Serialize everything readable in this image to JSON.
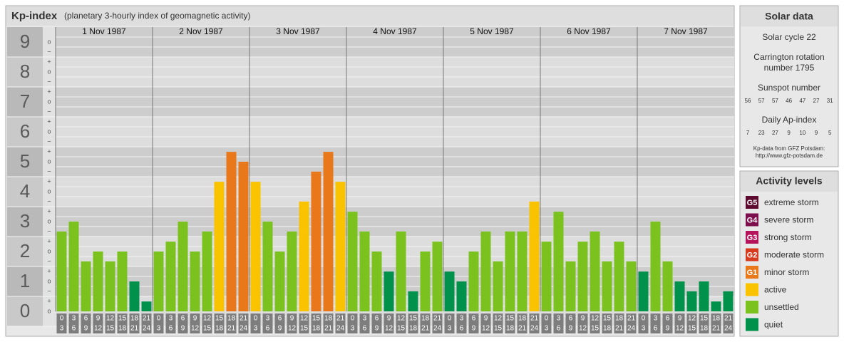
{
  "title": "Kp-index",
  "subtitle": "(planetary 3-hourly index of geomagnetic activity)",
  "chart_data": {
    "type": "bar",
    "ylim": [
      -0.5,
      9.5
    ],
    "yticks": [
      0,
      1,
      2,
      3,
      4,
      5,
      6,
      7,
      8,
      9
    ],
    "sublevel_labels": [
      "−",
      "o",
      "+"
    ],
    "time_labels": [
      {
        "from": "0",
        "to": "3"
      },
      {
        "from": "3",
        "to": "6"
      },
      {
        "from": "6",
        "to": "9"
      },
      {
        "from": "9",
        "to": "12"
      },
      {
        "from": "12",
        "to": "15"
      },
      {
        "from": "15",
        "to": "18"
      },
      {
        "from": "18",
        "to": "21"
      },
      {
        "from": "21",
        "to": "24"
      }
    ],
    "series": [
      {
        "name": "1 Nov 1987",
        "values": [
          2.67,
          3.0,
          1.67,
          2.0,
          1.67,
          2.0,
          1.0,
          0.33
        ],
        "colors": [
          "#7cc21f",
          "#7cc21f",
          "#7cc21f",
          "#7cc21f",
          "#7cc21f",
          "#7cc21f",
          "#00914a",
          "#00914a"
        ]
      },
      {
        "name": "2 Nov 1987",
        "values": [
          2.0,
          2.33,
          3.0,
          2.0,
          2.67,
          4.33,
          5.33,
          5.0
        ],
        "colors": [
          "#7cc21f",
          "#7cc21f",
          "#7cc21f",
          "#7cc21f",
          "#7cc21f",
          "#f9c300",
          "#e8781a",
          "#e8781a"
        ]
      },
      {
        "name": "3 Nov 1987",
        "values": [
          4.33,
          3.0,
          2.0,
          2.67,
          3.67,
          4.67,
          5.33,
          4.33
        ],
        "colors": [
          "#f9c300",
          "#7cc21f",
          "#7cc21f",
          "#7cc21f",
          "#f9c300",
          "#e8781a",
          "#e8781a",
          "#f9c300"
        ]
      },
      {
        "name": "4 Nov 1987",
        "values": [
          3.33,
          2.67,
          2.0,
          1.33,
          2.67,
          0.67,
          2.0,
          2.33
        ],
        "colors": [
          "#7cc21f",
          "#7cc21f",
          "#7cc21f",
          "#00914a",
          "#7cc21f",
          "#00914a",
          "#7cc21f",
          "#7cc21f"
        ]
      },
      {
        "name": "5 Nov 1987",
        "values": [
          1.33,
          1.0,
          2.0,
          2.67,
          1.67,
          2.67,
          2.67,
          3.67
        ],
        "colors": [
          "#00914a",
          "#00914a",
          "#7cc21f",
          "#7cc21f",
          "#7cc21f",
          "#7cc21f",
          "#7cc21f",
          "#f9c300"
        ]
      },
      {
        "name": "6 Nov 1987",
        "values": [
          2.33,
          3.33,
          1.67,
          2.33,
          2.67,
          1.67,
          2.33,
          1.67
        ],
        "colors": [
          "#7cc21f",
          "#7cc21f",
          "#7cc21f",
          "#7cc21f",
          "#7cc21f",
          "#7cc21f",
          "#7cc21f",
          "#7cc21f"
        ]
      },
      {
        "name": "7 Nov 1987",
        "values": [
          1.33,
          3.0,
          1.67,
          1.0,
          0.67,
          1.0,
          0.33,
          0.67
        ],
        "colors": [
          "#00914a",
          "#7cc21f",
          "#7cc21f",
          "#00914a",
          "#00914a",
          "#00914a",
          "#00914a",
          "#00914a"
        ]
      }
    ]
  },
  "solar_data": {
    "title": "Solar data",
    "cycle": "Solar cycle 22",
    "carrington": [
      "Carrington rotation",
      "number 1795"
    ],
    "sunspot_title": "Sunspot number",
    "sunspot": [
      56,
      57,
      57,
      46,
      47,
      27,
      31
    ],
    "ap_title": "Daily Ap-index",
    "ap": [
      7,
      23,
      27,
      9,
      10,
      9,
      5
    ],
    "source": [
      "Kp-data from GFZ Potsdam:",
      "http://www.gfz-potsdam.de"
    ]
  },
  "activity_levels": {
    "title": "Activity levels",
    "items": [
      {
        "badge": "G5",
        "label": "extreme storm",
        "color": "#5c0a2e"
      },
      {
        "badge": "G4",
        "label": "severe storm",
        "color": "#7e0f4d"
      },
      {
        "badge": "G3",
        "label": "strong storm",
        "color": "#b5145c"
      },
      {
        "badge": "G2",
        "label": "moderate storm",
        "color": "#d63b1e"
      },
      {
        "badge": "G1",
        "label": "minor storm",
        "color": "#e8781a"
      },
      {
        "badge": null,
        "label": "active",
        "color": "#f9c300"
      },
      {
        "badge": null,
        "label": "unsettled",
        "color": "#7cc21f"
      },
      {
        "badge": null,
        "label": "quiet",
        "color": "#00914a"
      }
    ]
  }
}
